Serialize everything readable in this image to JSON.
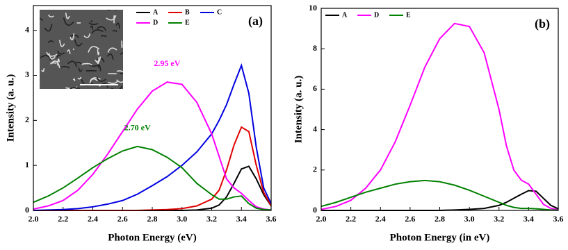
{
  "chart_data": [
    {
      "type": "line",
      "panel_label": "(a)",
      "xlabel": "Photon Energy (eV)",
      "ylabel": "Intensity (a. u.)",
      "x": [
        2.0,
        2.1,
        2.2,
        2.3,
        2.4,
        2.5,
        2.6,
        2.7,
        2.8,
        2.9,
        3.0,
        3.1,
        3.2,
        3.25,
        3.3,
        3.35,
        3.4,
        3.45,
        3.5,
        3.55,
        3.6
      ],
      "series": [
        {
          "name": "A",
          "color": "#000000",
          "values": [
            0,
            0,
            0,
            0,
            0,
            0,
            0,
            0,
            0,
            0,
            0,
            0.01,
            0.05,
            0.12,
            0.3,
            0.6,
            0.92,
            0.98,
            0.7,
            0.35,
            0.1
          ]
        },
        {
          "name": "B",
          "color": "#e00000",
          "values": [
            0,
            0,
            0,
            0,
            0,
            0,
            0,
            0,
            0.01,
            0.02,
            0.04,
            0.1,
            0.25,
            0.45,
            0.9,
            1.45,
            1.85,
            1.75,
            1.0,
            0.4,
            0.1
          ]
        },
        {
          "name": "C",
          "color": "#0000e0",
          "values": [
            0,
            0.01,
            0.02,
            0.04,
            0.08,
            0.14,
            0.22,
            0.36,
            0.55,
            0.75,
            1.0,
            1.3,
            1.7,
            2.0,
            2.35,
            2.8,
            3.22,
            2.6,
            1.4,
            0.5,
            0.15
          ]
        },
        {
          "name": "D",
          "color": "#ff00ff",
          "values": [
            0.03,
            0.1,
            0.22,
            0.45,
            0.8,
            1.25,
            1.75,
            2.25,
            2.65,
            2.85,
            2.8,
            2.4,
            1.7,
            1.2,
            0.7,
            0.5,
            0.38,
            0.22,
            0.08,
            0.03,
            0.01
          ]
        },
        {
          "name": "E",
          "color": "#008000",
          "values": [
            0.18,
            0.32,
            0.5,
            0.72,
            0.95,
            1.15,
            1.32,
            1.42,
            1.35,
            1.18,
            0.95,
            0.6,
            0.35,
            0.25,
            0.25,
            0.3,
            0.32,
            0.15,
            0.05,
            0.02,
            0.01
          ]
        }
      ],
      "annotations": [
        {
          "text": "2.95 eV",
          "color": "#ff00ff"
        },
        {
          "text": "2.70 eV",
          "color": "#008000"
        }
      ],
      "xlim": [
        2.0,
        3.6
      ],
      "xticks": [
        {
          "value": 2.0,
          "label": "2.0"
        },
        2.2,
        2.4,
        2.6,
        2.8,
        {
          "value": 3.0,
          "label": "3.0"
        },
        3.2,
        3.4,
        3.6
      ],
      "ylim": [
        0,
        4.55
      ],
      "yticks": [
        0,
        1,
        2,
        3,
        4
      ],
      "legend": "upper right",
      "inset_image": true
    },
    {
      "type": "line",
      "panel_label": "(b)",
      "xlabel": "Photon Energy (in eV)",
      "ylabel": "Intensity (a. u.)",
      "x": [
        2.0,
        2.1,
        2.2,
        2.3,
        2.4,
        2.5,
        2.6,
        2.7,
        2.8,
        2.9,
        3.0,
        3.1,
        3.2,
        3.25,
        3.3,
        3.35,
        3.4,
        3.45,
        3.5,
        3.55,
        3.6
      ],
      "series": [
        {
          "name": "A",
          "color": "#000000",
          "values": [
            0,
            0,
            0,
            0,
            0,
            0,
            0,
            0,
            0,
            0.02,
            0.05,
            0.1,
            0.25,
            0.4,
            0.6,
            0.8,
            0.98,
            0.95,
            0.6,
            0.25,
            0.08
          ]
        },
        {
          "name": "D",
          "color": "#ff00ff",
          "values": [
            0.05,
            0.2,
            0.5,
            1.1,
            2.0,
            3.4,
            5.2,
            7.1,
            8.5,
            9.25,
            9.1,
            7.8,
            5.0,
            3.2,
            2.0,
            1.5,
            1.3,
            0.8,
            0.3,
            0.1,
            0.03
          ]
        },
        {
          "name": "E",
          "color": "#008000",
          "values": [
            0.2,
            0.4,
            0.65,
            0.9,
            1.1,
            1.3,
            1.42,
            1.48,
            1.42,
            1.25,
            1.0,
            0.7,
            0.4,
            0.25,
            0.15,
            0.1,
            0.1,
            0.08,
            0.05,
            0.02,
            0.01
          ]
        }
      ],
      "xlim": [
        2.0,
        3.6
      ],
      "xticks": [
        {
          "value": 2.0,
          "label": "2.0"
        },
        2.2,
        2.4,
        2.6,
        2.8,
        {
          "value": 3.0,
          "label": "3.0"
        },
        3.2,
        3.4,
        3.6
      ],
      "ylim": [
        0,
        10
      ],
      "yticks": [
        0,
        2,
        4,
        6,
        8,
        10
      ],
      "legend": "upper left"
    }
  ]
}
